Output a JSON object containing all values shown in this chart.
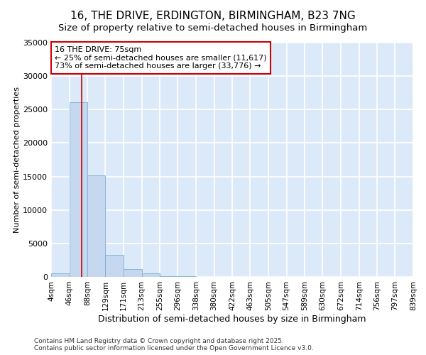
{
  "title": "16, THE DRIVE, ERDINGTON, BIRMINGHAM, B23 7NG",
  "subtitle": "Size of property relative to semi-detached houses in Birmingham",
  "xlabel": "Distribution of semi-detached houses by size in Birmingham",
  "ylabel": "Number of semi-detached properties",
  "bin_edges": [
    4,
    46,
    88,
    129,
    171,
    213,
    255,
    296,
    338,
    380,
    422,
    463,
    505,
    547,
    589,
    630,
    672,
    714,
    756,
    797,
    839
  ],
  "bin_labels": [
    "4sqm",
    "46sqm",
    "88sqm",
    "129sqm",
    "171sqm",
    "213sqm",
    "255sqm",
    "296sqm",
    "338sqm",
    "380sqm",
    "422sqm",
    "463sqm",
    "505sqm",
    "547sqm",
    "589sqm",
    "630sqm",
    "672sqm",
    "714sqm",
    "756sqm",
    "797sqm",
    "839sqm"
  ],
  "bar_heights": [
    500,
    26100,
    15200,
    3300,
    1200,
    500,
    150,
    60,
    20,
    10,
    5,
    2,
    1,
    0,
    0,
    0,
    0,
    0,
    0,
    0
  ],
  "bar_color": "#c5d8f0",
  "bar_edge_color": "#7bafd4",
  "bg_color": "#dce9f8",
  "grid_color": "#ffffff",
  "property_sqm": 75,
  "property_label": "16 THE DRIVE: 75sqm",
  "annotation_line1": "← 25% of semi-detached houses are smaller (11,617)",
  "annotation_line2": "73% of semi-detached houses are larger (33,776) →",
  "red_line_color": "#cc0000",
  "annotation_box_facecolor": "#ffffff",
  "annotation_box_edgecolor": "#cc0000",
  "ylim": [
    0,
    35000
  ],
  "yticks": [
    0,
    5000,
    10000,
    15000,
    20000,
    25000,
    30000,
    35000
  ],
  "title_fontsize": 11,
  "subtitle_fontsize": 9.5,
  "footer_line1": "Contains HM Land Registry data © Crown copyright and database right 2025.",
  "footer_line2": "Contains public sector information licensed under the Open Government Licence v3.0."
}
